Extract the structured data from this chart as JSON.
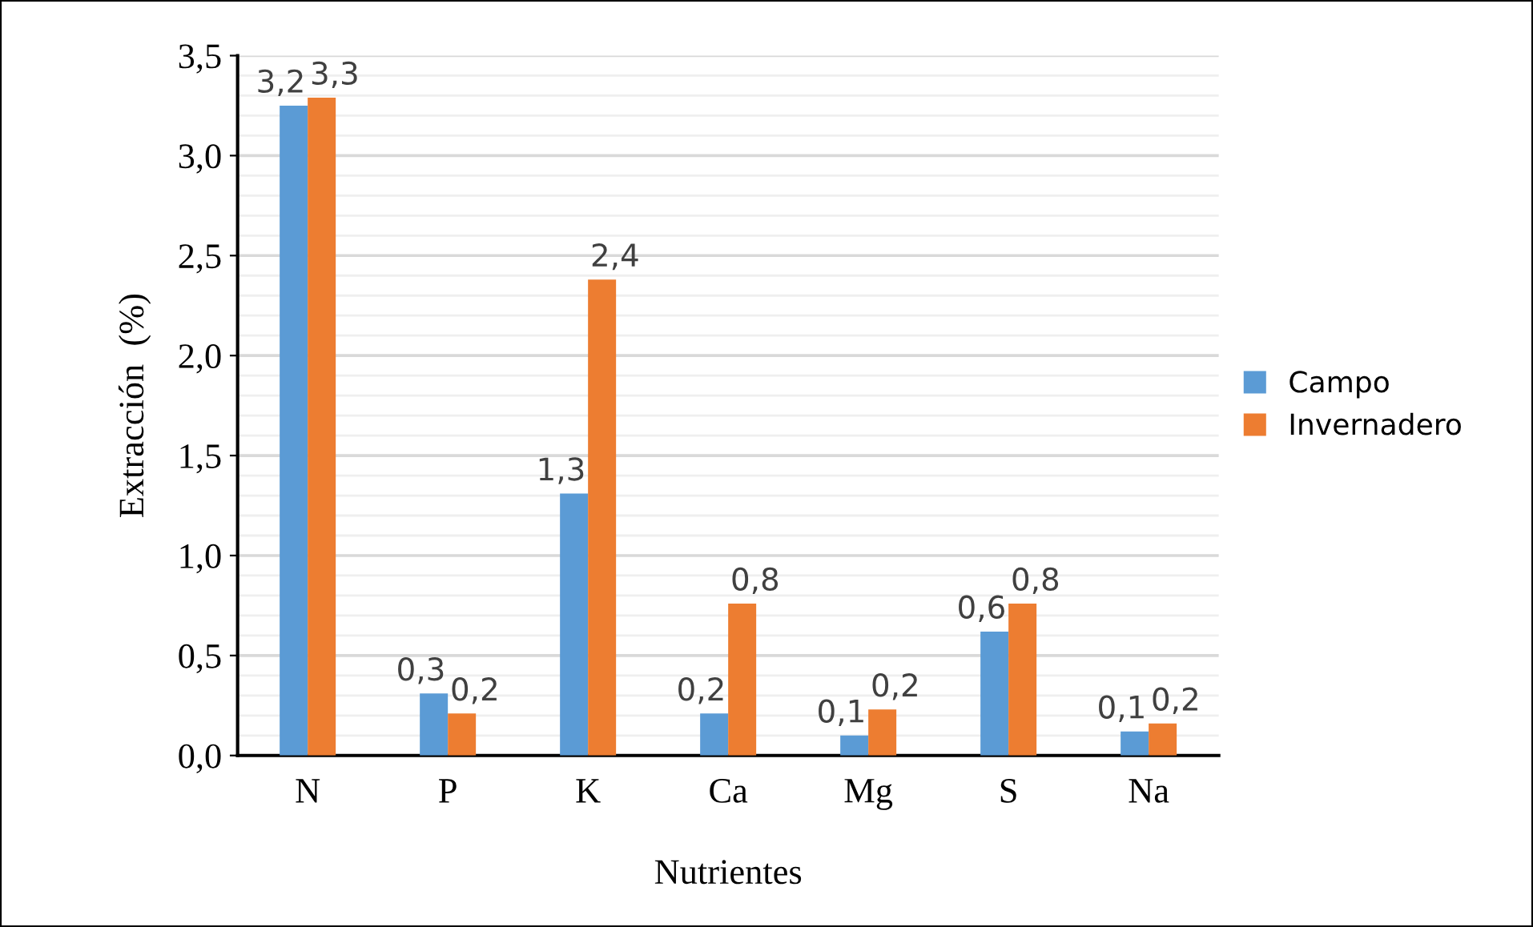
{
  "chart_data": {
    "type": "bar",
    "xlabel": "Nutrientes",
    "ylabel": "Extracción  (%)",
    "categories": [
      "N",
      "P",
      "K",
      "Ca",
      "Mg",
      "S",
      "Na"
    ],
    "series": [
      {
        "name": "Campo",
        "color": "#5b9bd5",
        "values": [
          3.25,
          0.31,
          1.31,
          0.21,
          0.1,
          0.62,
          0.12
        ],
        "value_labels": [
          "3,2",
          "0,3",
          "1,3",
          "0,2",
          "0,1",
          "0,6",
          "0,1"
        ]
      },
      {
        "name": "Invernadero",
        "color": "#ed7d31",
        "values": [
          3.29,
          0.21,
          2.38,
          0.76,
          0.23,
          0.76,
          0.16
        ],
        "value_labels": [
          "3,3",
          "0,2",
          "2,4",
          "0,8",
          "0,2",
          "0,8",
          "0,2"
        ]
      }
    ],
    "ylim": [
      0,
      3.5
    ],
    "yticks": [
      {
        "value": 0,
        "label": "0,0"
      },
      {
        "value": 0.1,
        "label": null
      },
      {
        "value": 0.2,
        "label": null
      },
      {
        "value": 0.3,
        "label": null
      },
      {
        "value": 0.4,
        "label": null
      },
      {
        "value": 0.5,
        "label": "0,5"
      },
      {
        "value": 0.6,
        "label": null
      },
      {
        "value": 0.7,
        "label": null
      },
      {
        "value": 0.8,
        "label": null
      },
      {
        "value": 0.9,
        "label": null
      },
      {
        "value": 1.0,
        "label": "1,0"
      },
      {
        "value": 1.1,
        "label": null
      },
      {
        "value": 1.2,
        "label": null
      },
      {
        "value": 1.3,
        "label": null
      },
      {
        "value": 1.4,
        "label": null
      },
      {
        "value": 1.5,
        "label": "1,5"
      },
      {
        "value": 1.6,
        "label": null
      },
      {
        "value": 1.7,
        "label": null
      },
      {
        "value": 1.8,
        "label": null
      },
      {
        "value": 1.9,
        "label": null
      },
      {
        "value": 2.0,
        "label": "2,0"
      },
      {
        "value": 2.1,
        "label": null
      },
      {
        "value": 2.2,
        "label": null
      },
      {
        "value": 2.3,
        "label": null
      },
      {
        "value": 2.4,
        "label": null
      },
      {
        "value": 2.5,
        "label": "2,5"
      },
      {
        "value": 2.6,
        "label": null
      },
      {
        "value": 2.7,
        "label": null
      },
      {
        "value": 2.8,
        "label": null
      },
      {
        "value": 2.9,
        "label": null
      },
      {
        "value": 3.0,
        "label": "3,0"
      },
      {
        "value": 3.1,
        "label": null
      },
      {
        "value": 3.2,
        "label": null
      },
      {
        "value": 3.3,
        "label": null
      },
      {
        "value": 3.4,
        "label": null
      },
      {
        "value": 3.5,
        "label": "3,5"
      }
    ],
    "grid": "y",
    "legend": "right"
  }
}
